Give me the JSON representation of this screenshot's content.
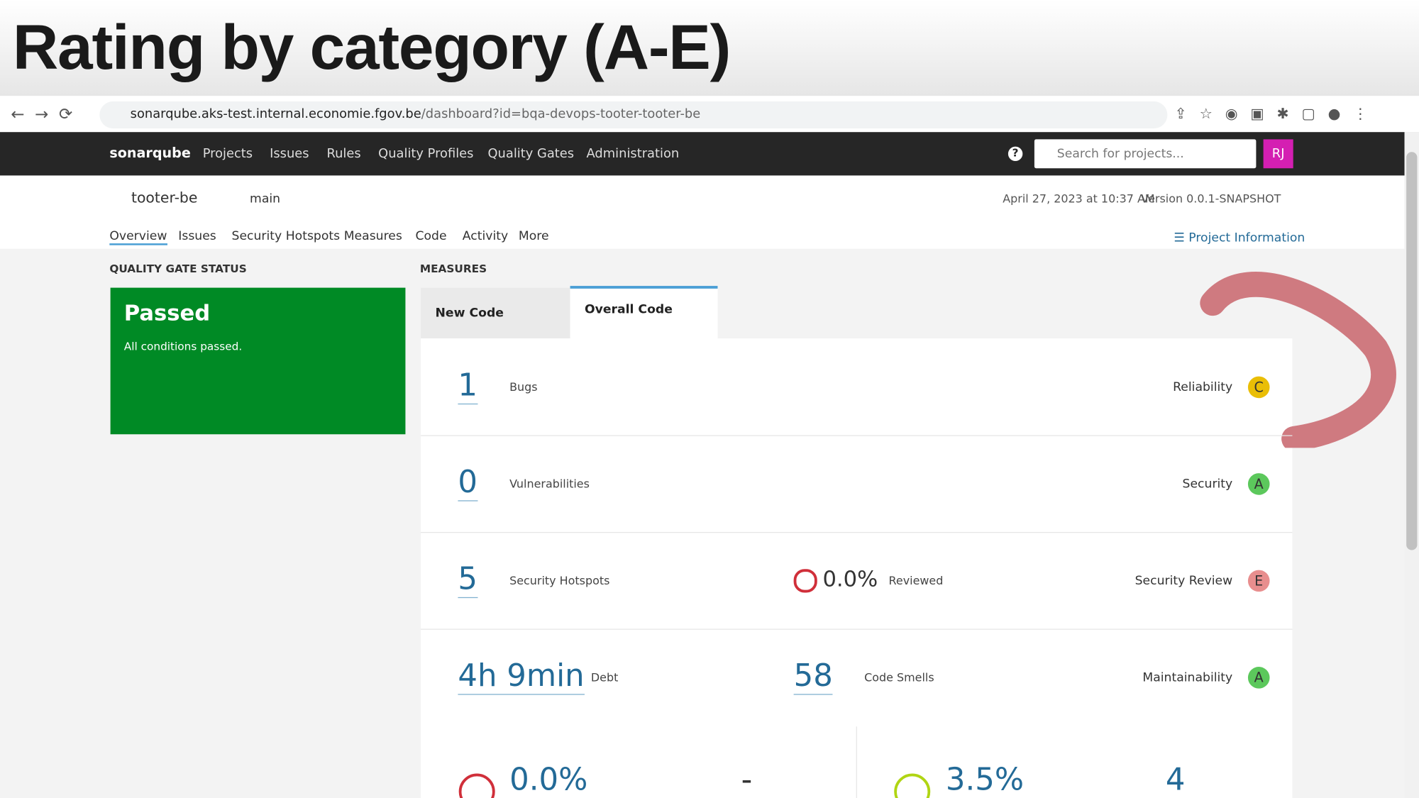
{
  "slide_title": "Rating by category (A-E)",
  "browser": {
    "url_host": "sonarqube.aks-test.internal.economie.fgov.be",
    "url_path": "/dashboard?id=bqa-devops-tooter-tooter-be"
  },
  "nav": {
    "logo": "sonarqube",
    "items": [
      "Projects",
      "Issues",
      "Rules",
      "Quality Profiles",
      "Quality Gates",
      "Administration"
    ],
    "search_placeholder": "Search for projects...",
    "avatar": "RJ"
  },
  "project": {
    "name": "tooter-be",
    "branch": "main",
    "analysis_date": "April 27, 2023 at 10:37 AM",
    "version": "Version 0.0.1-SNAPSHOT",
    "tabs": [
      "Overview",
      "Issues",
      "Security Hotspots",
      "Measures",
      "Code",
      "Activity",
      "More"
    ],
    "info_link": "Project Information"
  },
  "quality_gate": {
    "heading": "QUALITY GATE STATUS",
    "status": "Passed",
    "message": "All conditions passed."
  },
  "measures": {
    "heading": "MEASURES",
    "tabs": [
      "New Code",
      "Overall Code"
    ],
    "rows": [
      {
        "value": 1,
        "label": "Bugs",
        "category": "Reliability",
        "rating": "C"
      },
      {
        "value": 0,
        "label": "Vulnerabilities",
        "category": "Security",
        "rating": "A"
      },
      {
        "value": 5,
        "label": "Security Hotspots",
        "extra_value": "0.0%",
        "extra_label": "Reviewed",
        "category": "Security Review",
        "rating": "E"
      },
      {
        "value": "4h 9min",
        "label": "Debt",
        "extra_value": 58,
        "extra_label": "Code Smells",
        "category": "Maintainability",
        "rating": "A"
      }
    ],
    "bottom": [
      "0.0%",
      "-",
      "3.5%",
      4
    ]
  }
}
